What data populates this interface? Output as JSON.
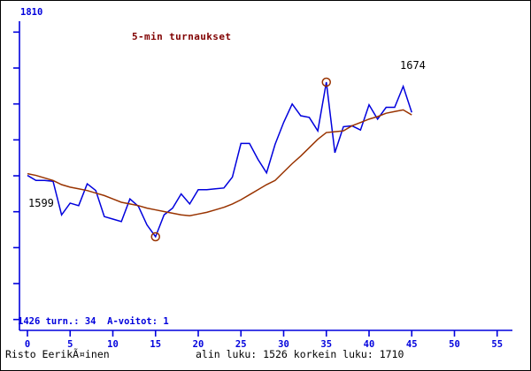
{
  "window": {
    "background": "#ffffff",
    "border_color": "#000000"
  },
  "title": {
    "text": "5-min turnaukset",
    "color": "#800000"
  },
  "annotations": {
    "y_top_label": "1810",
    "bottom_left_line": "1426 turn.: 34  A-voitot: 1",
    "first_point_label": "1599",
    "last_point_label": "1674"
  },
  "footer": {
    "player": "Risto EerikÃ¤inen",
    "stats": "alin luku: 1526 korkein luku: 1710"
  },
  "chart_data": {
    "type": "line",
    "title": "5-min turnaukset",
    "xlabel": "",
    "ylabel": "",
    "x_step": 1,
    "x_range": [
      0,
      45
    ],
    "y_axis": {
      "top_label": "1810",
      "bottom_label": "1426",
      "tick_count": 9,
      "axis_color": "#0000dd"
    },
    "x_axis": {
      "ticks": [
        0,
        5,
        10,
        15,
        20,
        25,
        30,
        35,
        40,
        45,
        50,
        55
      ],
      "tick_label_color": "#0000dd"
    },
    "legend": "none",
    "grid": false,
    "series": [
      {
        "name": "tournament-rating",
        "color": "#0000dd",
        "values": [
          1599,
          1593,
          1593,
          1592,
          1552,
          1566,
          1563,
          1589,
          1581,
          1550,
          1547,
          1544,
          1571,
          1562,
          1540,
          1526,
          1552,
          1560,
          1577,
          1565,
          1582,
          1582,
          1583,
          1584,
          1597,
          1637,
          1637,
          1618,
          1602,
          1636,
          1662,
          1684,
          1670,
          1668,
          1652,
          1710,
          1626,
          1657,
          1658,
          1653,
          1683,
          1666,
          1680,
          1680,
          1705,
          1674
        ]
      },
      {
        "name": "rating-average",
        "color": "#993300",
        "values": [
          1601,
          1599,
          1596,
          1593,
          1588,
          1585,
          1583,
          1581,
          1578,
          1575,
          1571,
          1567,
          1565,
          1563,
          1560,
          1558,
          1556,
          1554,
          1552,
          1551,
          1553,
          1555,
          1558,
          1561,
          1565,
          1570,
          1576,
          1582,
          1588,
          1593,
          1603,
          1613,
          1622,
          1632,
          1642,
          1650,
          1651,
          1652,
          1658,
          1662,
          1666,
          1669,
          1673,
          1675,
          1677,
          1671
        ]
      }
    ],
    "markers": [
      {
        "name": "min-point",
        "x": 15,
        "value": 1526,
        "color": "#993300"
      },
      {
        "name": "max-point",
        "x": 35,
        "value": 1710,
        "color": "#993300"
      }
    ],
    "min_value": 1526,
    "max_value": 1710,
    "first_value": 1599,
    "last_value": 1674
  }
}
